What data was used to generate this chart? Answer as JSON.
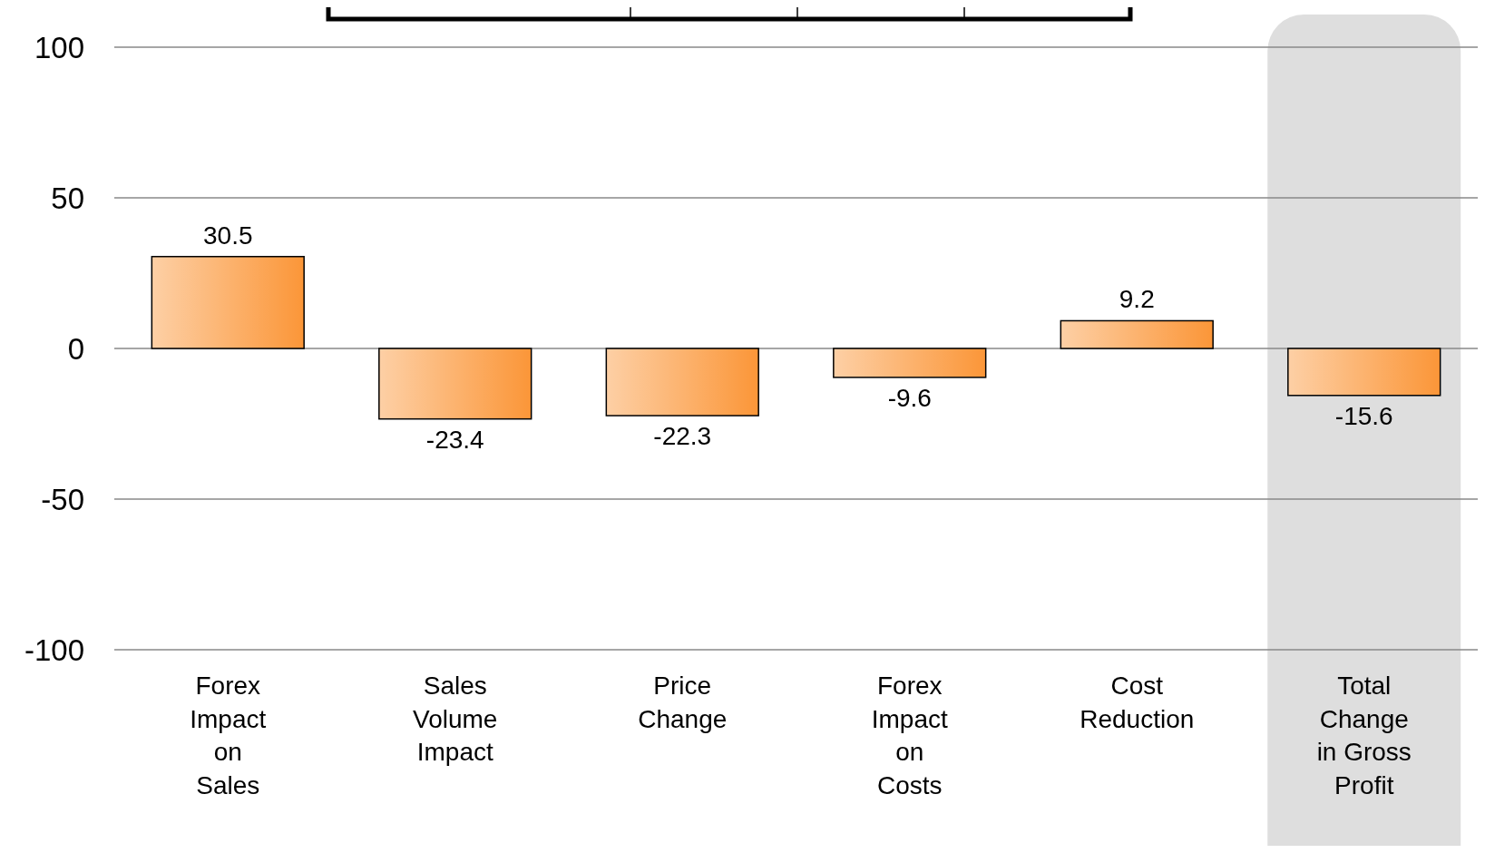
{
  "chart_data": {
    "type": "bar",
    "categories": [
      "Forex Impact on Sales",
      "Sales Volume Impact",
      "Price Change",
      "Forex Impact on Costs",
      "Cost Reduction",
      "Total Change in Gross Profit"
    ],
    "values": [
      30.5,
      -23.4,
      -22.3,
      -9.6,
      9.2,
      -15.6
    ],
    "color": "#fb9638",
    "ylim": [
      -100,
      100
    ],
    "yticks": [
      -100,
      -50,
      0,
      50,
      100
    ],
    "grid": "y",
    "data_labels": true,
    "bands": [
      {
        "axis": "x",
        "from": "Total Change in Gross Profit",
        "to": "Total Change in Gross Profit",
        "color": "#dedede"
      }
    ]
  }
}
